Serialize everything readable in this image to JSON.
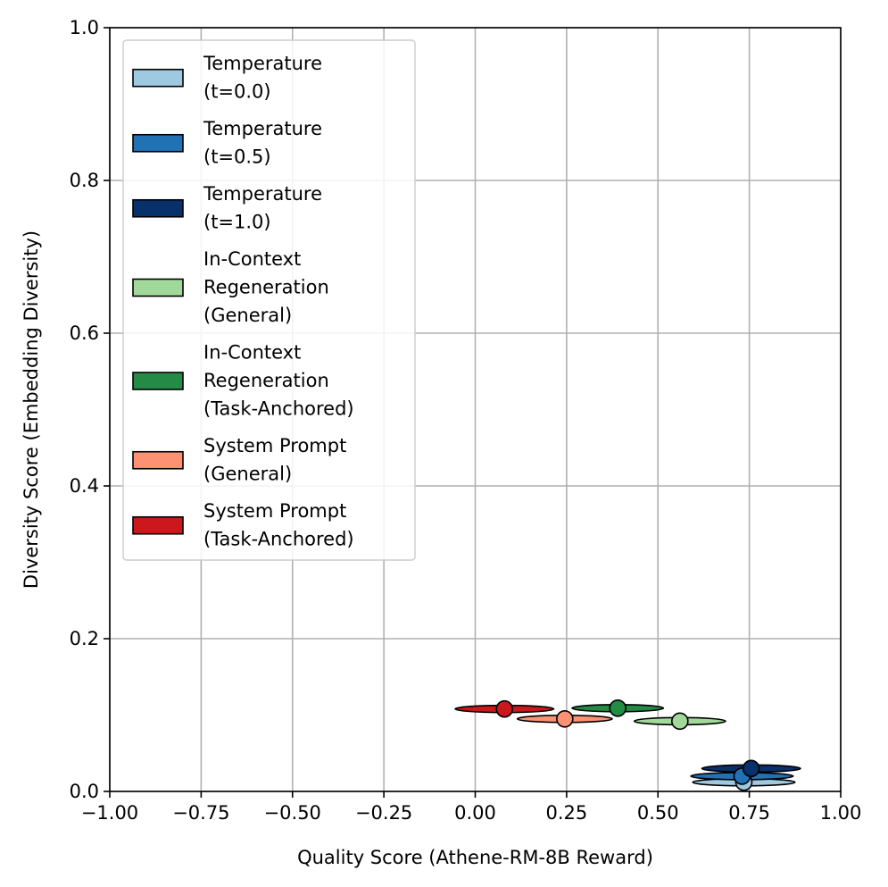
{
  "chart_data": {
    "type": "scatter",
    "title": "",
    "xlabel": "Quality Score (Athene-RM-8B Reward)",
    "ylabel": "Diversity Score (Embedding Diversity)",
    "xlim": [
      -1.0,
      1.0
    ],
    "ylim": [
      0.0,
      1.0
    ],
    "grid": true,
    "legend_position": "upper-left",
    "x_ticks": [
      -1.0,
      -0.75,
      -0.5,
      -0.25,
      0.0,
      0.25,
      0.5,
      0.75,
      1.0
    ],
    "x_tick_labels": [
      "−1.00",
      "−0.75",
      "−0.50",
      "−0.25",
      "0.00",
      "0.25",
      "0.50",
      "0.75",
      "1.00"
    ],
    "y_ticks": [
      0.0,
      0.2,
      0.4,
      0.6,
      0.8,
      1.0
    ],
    "y_tick_labels": [
      "0.0",
      "0.2",
      "0.4",
      "0.6",
      "0.8",
      "1.0"
    ],
    "series": [
      {
        "name": "Temperature (t=0.0)",
        "legend_lines": [
          "Temperature",
          "(t=0.0)"
        ],
        "color": "#9ecae1",
        "x": 0.735,
        "y": 0.012,
        "x_spread": 0.14,
        "y_spread": 0.003
      },
      {
        "name": "Temperature (t=0.5)",
        "legend_lines": [
          "Temperature",
          "(t=0.5)"
        ],
        "color": "#2171b5",
        "x": 0.73,
        "y": 0.02,
        "x_spread": 0.14,
        "y_spread": 0.003
      },
      {
        "name": "Temperature (t=1.0)",
        "legend_lines": [
          "Temperature",
          "(t=1.0)"
        ],
        "color": "#08306b",
        "x": 0.755,
        "y": 0.03,
        "x_spread": 0.135,
        "y_spread": 0.003
      },
      {
        "name": "In-Context Regeneration (General)",
        "legend_lines": [
          "In-Context",
          "Regeneration",
          "(General)"
        ],
        "color": "#a1d99b",
        "x": 0.56,
        "y": 0.092,
        "x_spread": 0.125,
        "y_spread": 0.004
      },
      {
        "name": "In-Context Regeneration (Task-Anchored)",
        "legend_lines": [
          "In-Context",
          "Regeneration",
          "(Task-Anchored)"
        ],
        "color": "#238b45",
        "x": 0.39,
        "y": 0.109,
        "x_spread": 0.125,
        "y_spread": 0.004
      },
      {
        "name": "System Prompt (General)",
        "legend_lines": [
          "System Prompt",
          "(General)"
        ],
        "color": "#fc9272",
        "x": 0.245,
        "y": 0.095,
        "x_spread": 0.13,
        "y_spread": 0.004
      },
      {
        "name": "System Prompt (Task-Anchored)",
        "legend_lines": [
          "System Prompt",
          "(Task-Anchored)"
        ],
        "color": "#cb181d",
        "x": 0.08,
        "y": 0.108,
        "x_spread": 0.135,
        "y_spread": 0.004
      }
    ]
  }
}
